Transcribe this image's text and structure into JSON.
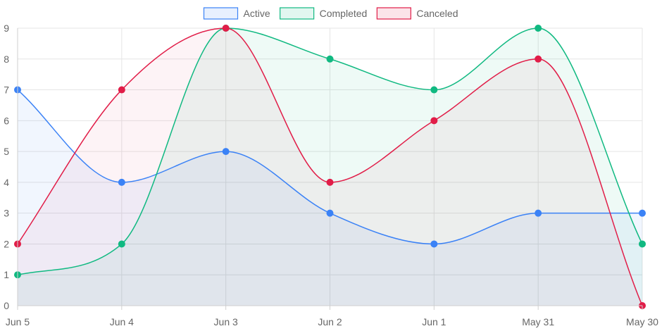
{
  "chart_data": {
    "type": "line",
    "title": "",
    "xlabel": "",
    "ylabel": "",
    "categories": [
      "Jun 5",
      "Jun 4",
      "Jun 3",
      "Jun 2",
      "Jun 1",
      "May 31",
      "May 30"
    ],
    "ylim": [
      0,
      9
    ],
    "yticks": [
      0,
      1,
      2,
      3,
      4,
      5,
      6,
      7,
      8,
      9
    ],
    "grid": true,
    "legend_position": "top-center",
    "fill": true,
    "smooth": true,
    "series": [
      {
        "name": "Active",
        "values": [
          7,
          4,
          5,
          3,
          2,
          3,
          3
        ],
        "color": "#3b82f6",
        "fill_color": "rgba(59,130,246,0.07)"
      },
      {
        "name": "Completed",
        "values": [
          1,
          2,
          9,
          8,
          7,
          9,
          2
        ],
        "color": "#10b981",
        "fill_color": "rgba(16,185,129,0.07)"
      },
      {
        "name": "Canceled",
        "values": [
          2,
          7,
          9,
          4,
          6,
          8,
          0
        ],
        "color": "#e11d48",
        "fill_color": "rgba(225,29,72,0.05)"
      }
    ]
  }
}
